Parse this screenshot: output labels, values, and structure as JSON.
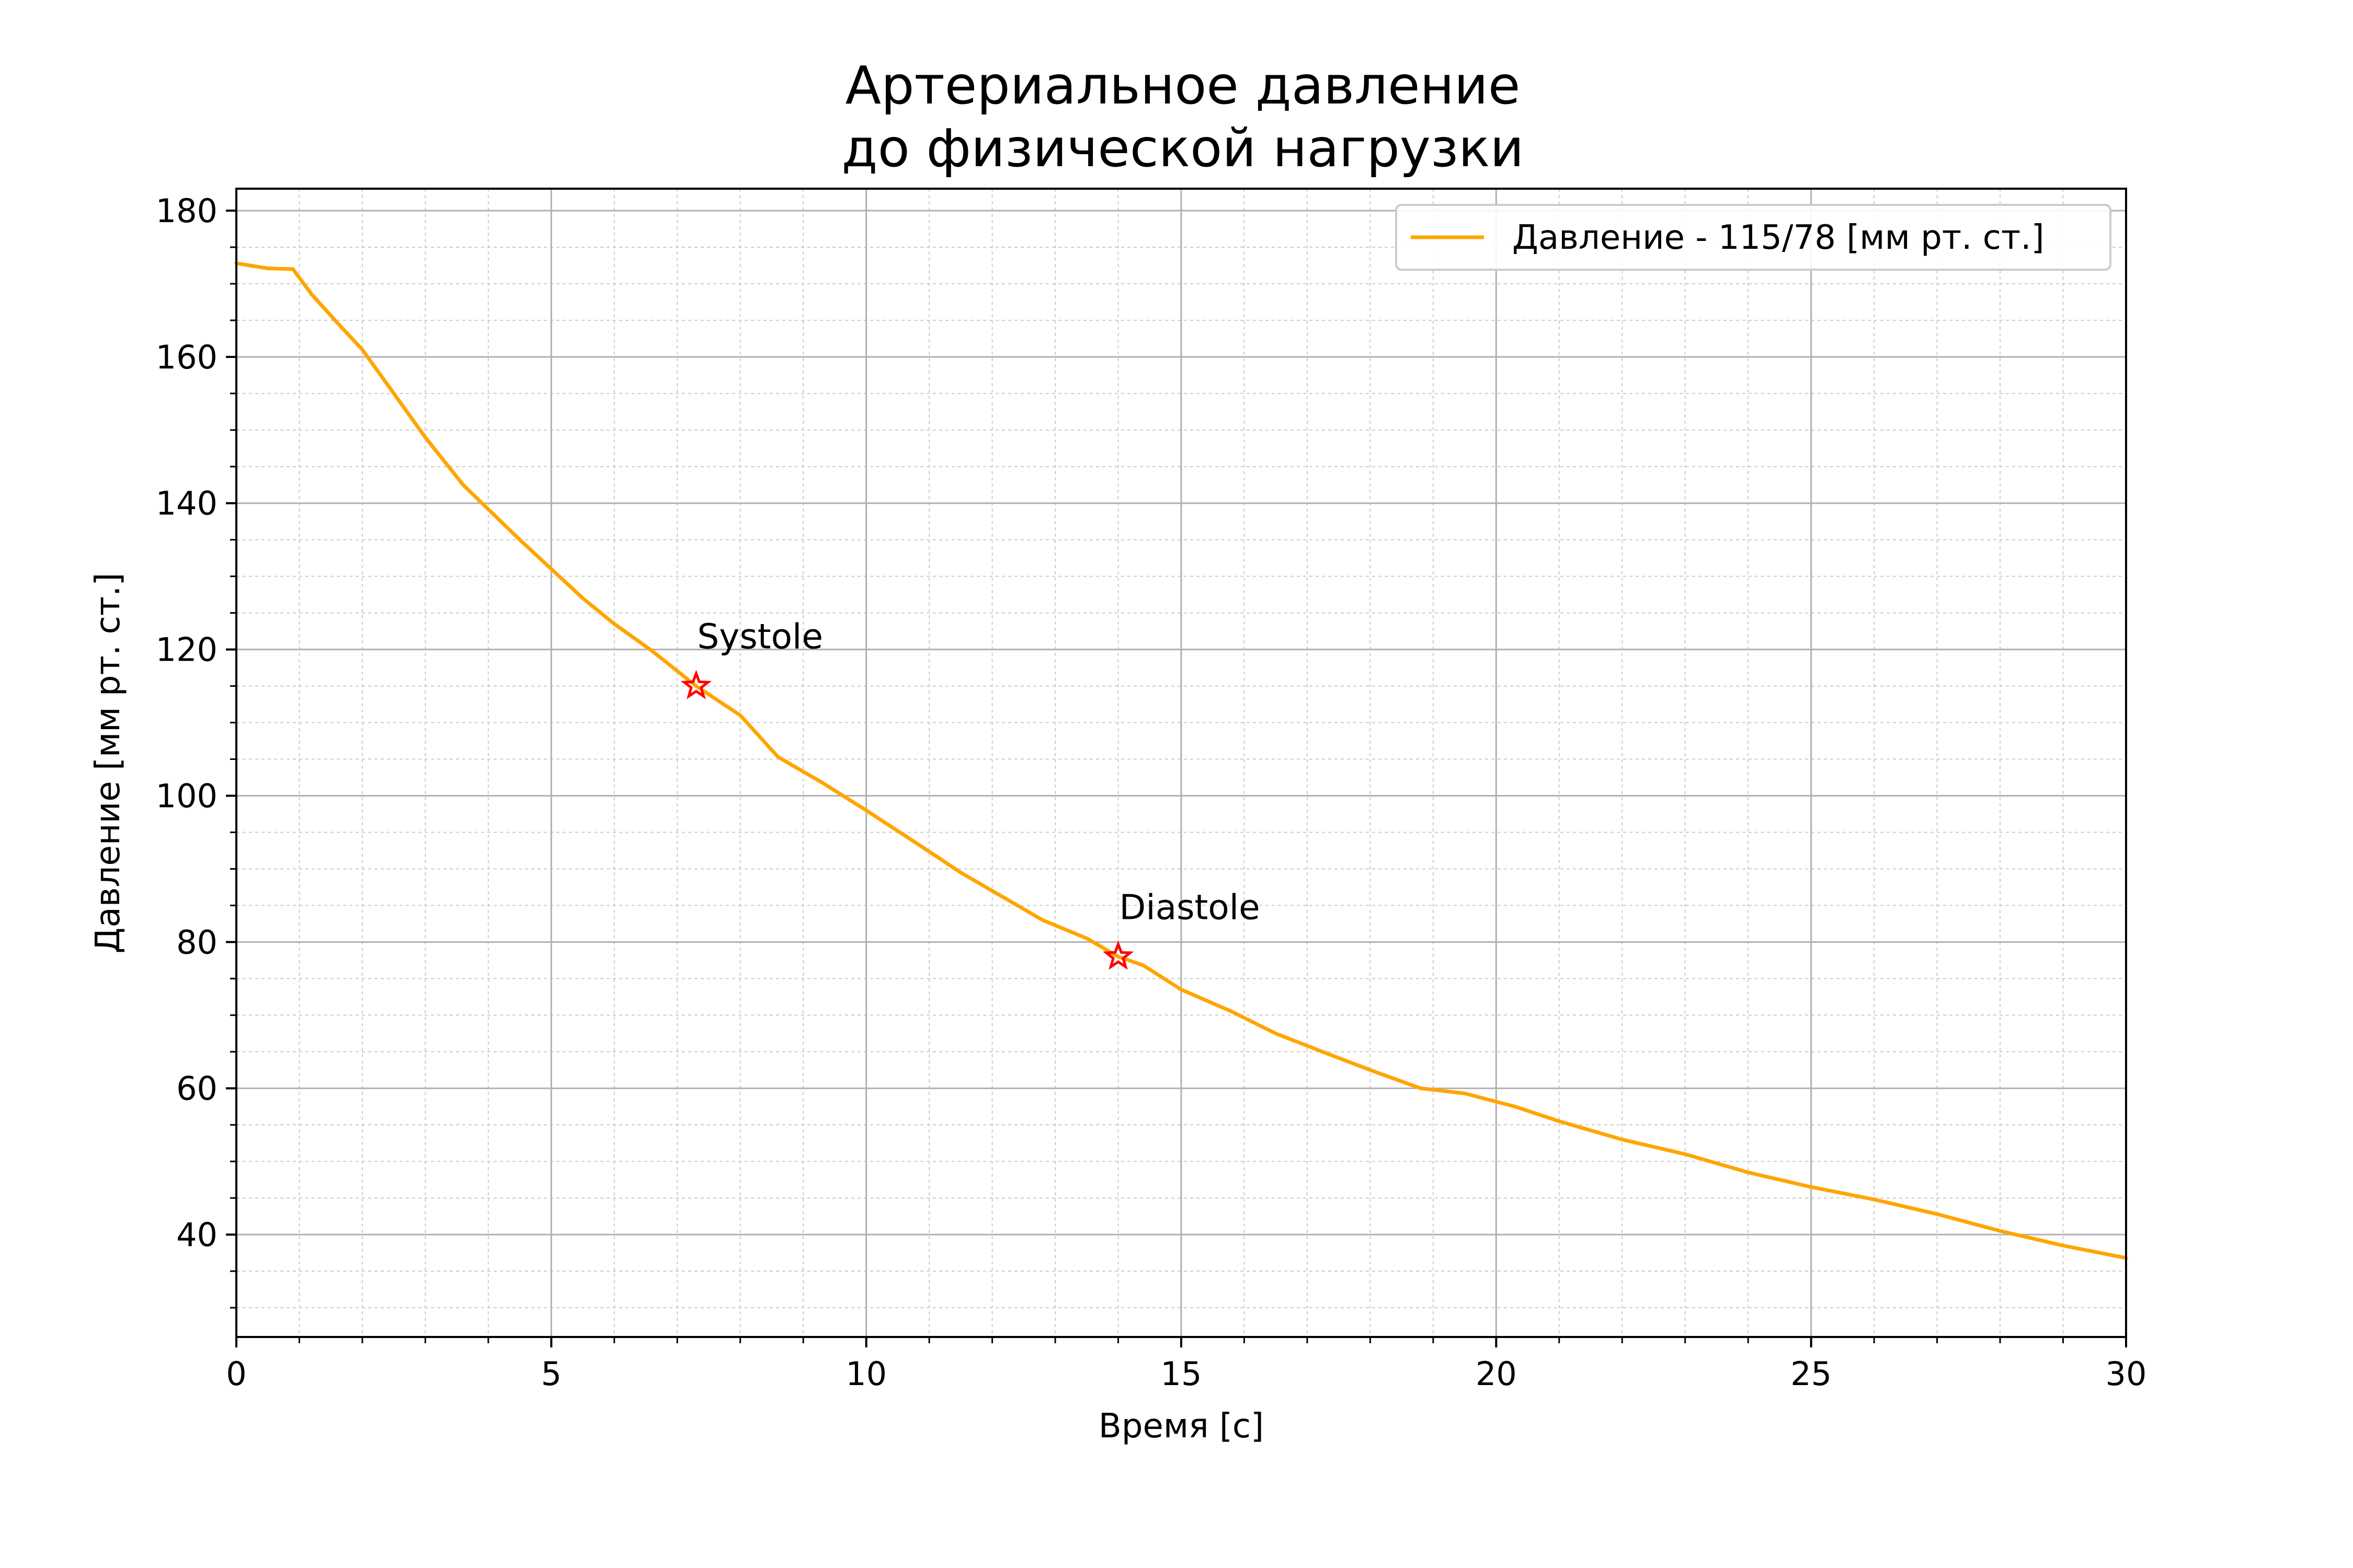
{
  "chart_data": {
    "type": "line",
    "title": [
      "Артериальное давление",
      "до физической нагрузки"
    ],
    "xlabel": "Время [с]",
    "ylabel": "Давление [мм рт. ст.]",
    "xlim": [
      0,
      30
    ],
    "ylim": [
      26,
      183
    ],
    "xticks": [
      0,
      5,
      10,
      15,
      20,
      25,
      30
    ],
    "yticks": [
      40,
      60,
      80,
      100,
      120,
      140,
      160,
      180
    ],
    "grid": "major and minor",
    "legend_position": "top-right",
    "series": [
      {
        "name": "Давление - 115/78 [мм рт. ст.]",
        "color": "#ffa500",
        "x": [
          0,
          0.5,
          0.9,
          1.2,
          1.6,
          2.0,
          2.5,
          3.0,
          3.6,
          4.5,
          5.5,
          6.0,
          6.6,
          7.3,
          8.0,
          8.6,
          9.3,
          10.0,
          10.8,
          11.5,
          12.2,
          12.8,
          13.5,
          14.0,
          14.4,
          15.0,
          15.8,
          16.5,
          17.3,
          18.0,
          18.8,
          19.5,
          20.3,
          21.0,
          22.0,
          23.0,
          24.0,
          25.0,
          26.0,
          27.0,
          28.0,
          29.0,
          30.0
        ],
        "y": [
          172.8,
          172.1,
          172.0,
          168.5,
          164.7,
          161.0,
          155.0,
          149.0,
          142.5,
          135.0,
          127.0,
          123.5,
          119.8,
          115.0,
          111.0,
          105.3,
          101.8,
          98.0,
          93.5,
          89.5,
          86.0,
          83.0,
          80.5,
          78.0,
          76.8,
          73.5,
          70.5,
          67.5,
          64.8,
          62.5,
          60.0,
          59.3,
          57.5,
          55.5,
          53.0,
          51.0,
          48.5,
          46.5,
          44.8,
          42.8,
          40.5,
          38.5,
          36.8
        ]
      }
    ],
    "annotations": [
      {
        "text": "Systole",
        "x": 7.3,
        "y": 115,
        "marker_color": "#ff0000"
      },
      {
        "text": "Diastole",
        "x": 14.0,
        "y": 78,
        "marker_color": "#ff0000"
      }
    ]
  }
}
